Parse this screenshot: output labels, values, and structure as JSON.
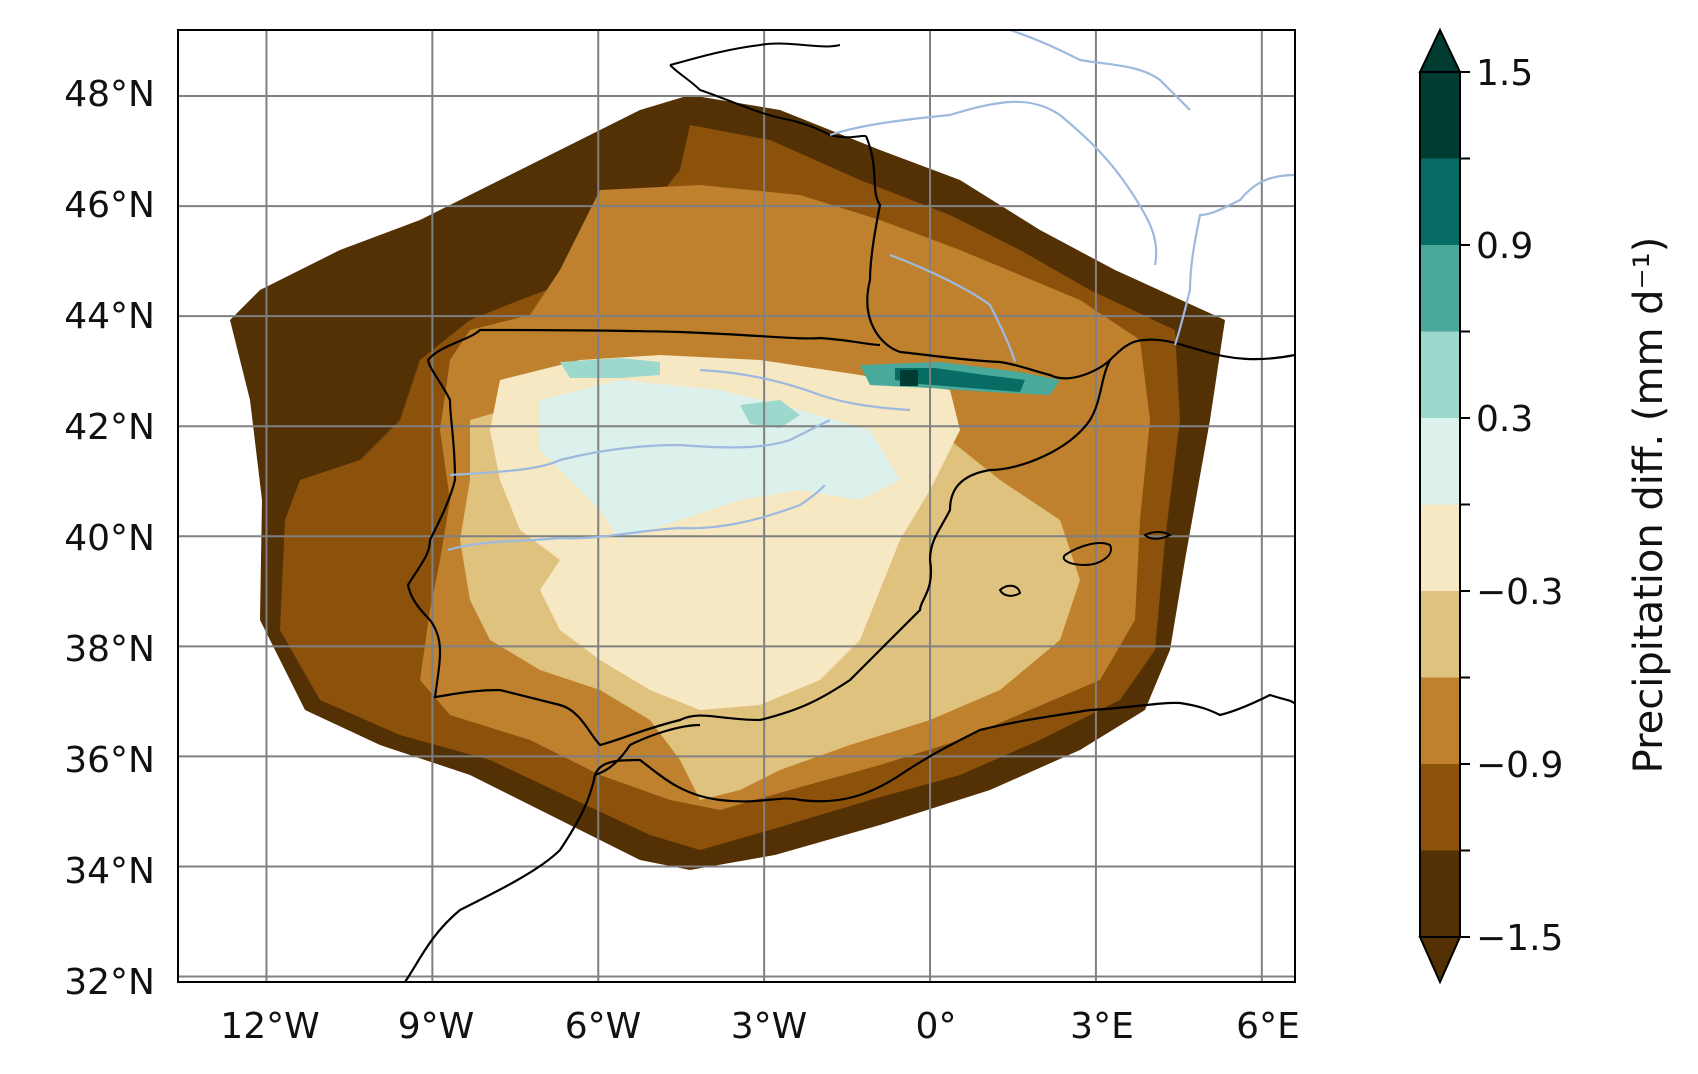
{
  "map": {
    "lat_labels": [
      "48°N",
      "46°N",
      "44°N",
      "42°N",
      "40°N",
      "38°N",
      "36°N",
      "34°N",
      "32°N"
    ],
    "lon_labels": [
      "12°W",
      "9°W",
      "6°W",
      "3°W",
      "0°",
      "3°E",
      "6°E"
    ],
    "lat_values": [
      48,
      46,
      44,
      42,
      40,
      38,
      36,
      34,
      32
    ],
    "lon_values": [
      -12,
      -9,
      -6,
      -3,
      0,
      3,
      6
    ],
    "extent": {
      "lon": [
        -13.6,
        6.6
      ],
      "lat": [
        31.9,
        49.2
      ]
    },
    "gridlines": true,
    "gridline_color": "#808080",
    "coastline_color": "#000000",
    "river_color": "#9db9de",
    "field_description": "Precipitation difference field over Iberian Peninsula, drying (brown) over most of domain, slight wetting (teal) over Pyrenees and central Spain"
  },
  "colorbar": {
    "label": "Precipitation diff. (mm d⁻¹)",
    "tick_labels": [
      "1.5",
      "0.9",
      "0.3",
      "−0.3",
      "−0.9",
      "−1.5"
    ],
    "tick_values": [
      1.5,
      0.9,
      0.3,
      -0.3,
      -0.9,
      -1.5
    ],
    "range": [
      -1.5,
      1.5
    ],
    "extend": "both",
    "levels": [
      -1.5,
      -1.2,
      -0.9,
      -0.6,
      -0.3,
      0,
      0.3,
      0.6,
      0.9,
      1.2,
      1.5
    ],
    "colors": [
      "#543005",
      "#8c510a",
      "#bf812d",
      "#dfc27d",
      "#f6e8c3",
      "#dcf0ec",
      "#9dd8cc",
      "#49a99a",
      "#076d64",
      "#013c33"
    ],
    "under_color": "#543005",
    "over_color": "#003c30"
  }
}
